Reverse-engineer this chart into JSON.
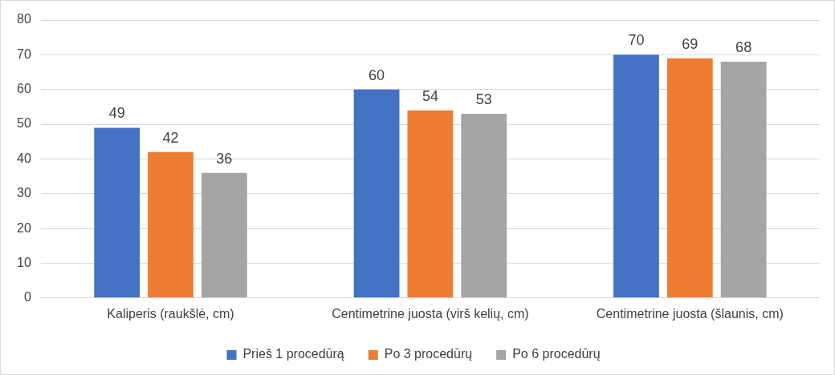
{
  "chart_data": {
    "type": "bar",
    "categories": [
      "Kaliperis (raukšlė, cm)",
      "Centimetrine juosta (virš kelių, cm)",
      "Centimetrine juosta (šlaunis, cm)"
    ],
    "series": [
      {
        "name": "Prieš 1 procedūrą",
        "color": "#4472c4",
        "values": [
          49,
          60,
          70
        ]
      },
      {
        "name": "Po 3 procedūrų",
        "color": "#ed7d31",
        "values": [
          42,
          54,
          69
        ]
      },
      {
        "name": "Po 6 procedūrų",
        "color": "#a5a5a5",
        "values": [
          36,
          53,
          68
        ]
      }
    ],
    "ylim": [
      0,
      80
    ],
    "yticks": [
      0,
      10,
      20,
      30,
      40,
      50,
      60,
      70,
      80
    ],
    "grid": "y",
    "legend": "bottom",
    "data_labels": true
  }
}
